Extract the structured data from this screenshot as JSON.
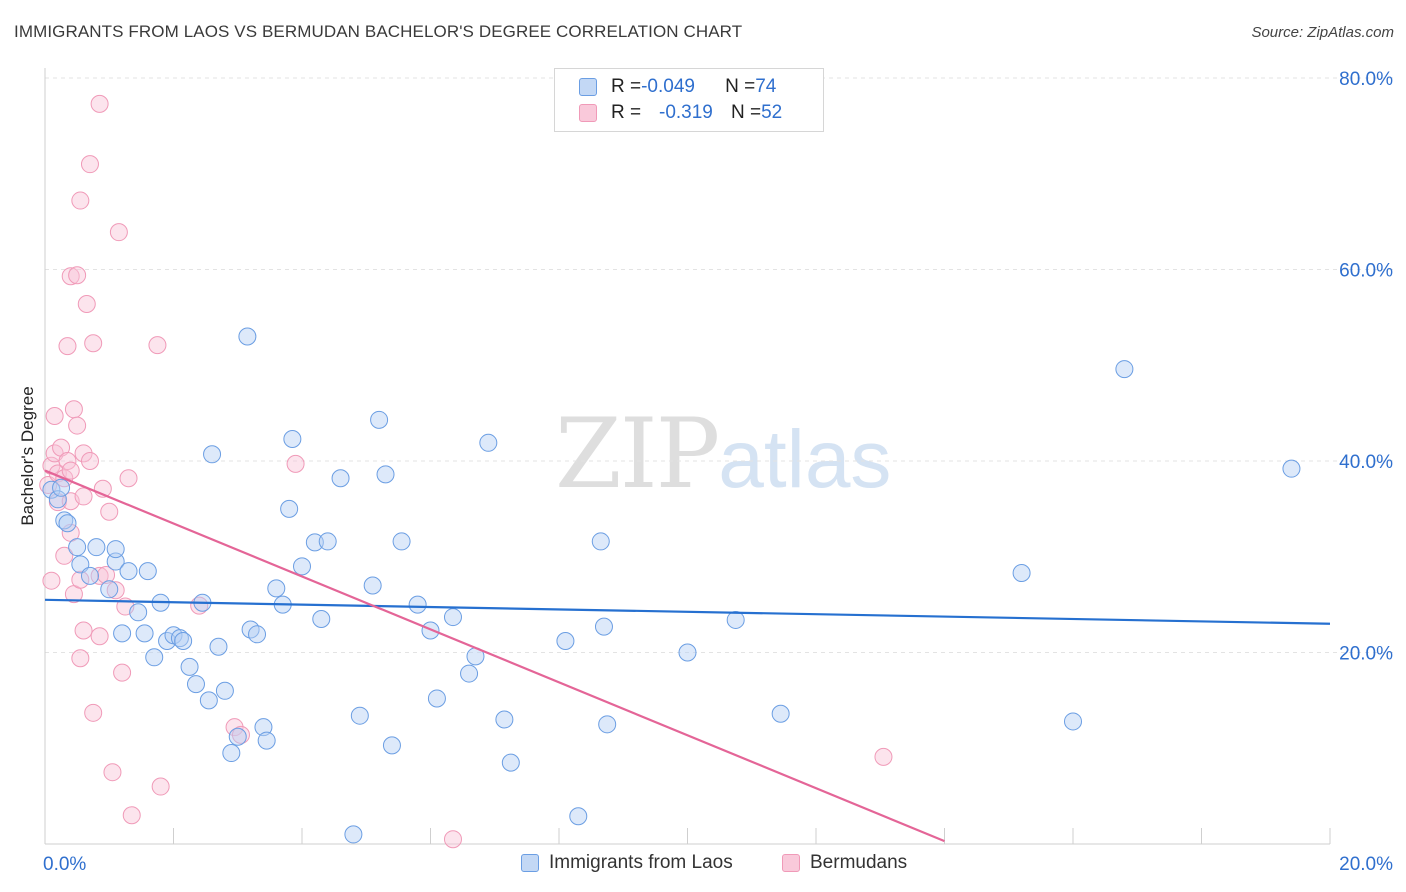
{
  "title": "IMMIGRANTS FROM LAOS VS BERMUDAN BACHELOR'S DEGREE CORRELATION CHART",
  "source": "Source: ZipAtlas.com",
  "watermark": {
    "zip": "ZIP",
    "atlas": "atlas"
  },
  "legend": {
    "rows": [
      {
        "r_label": "R = ",
        "r_value": "-0.049",
        "n_label": "N = ",
        "n_value": "74"
      },
      {
        "r_label": "R = ",
        "r_value": "-0.319",
        "n_label": "N = ",
        "n_value": "52"
      }
    ]
  },
  "bottom_legend": [
    "Immigrants from Laos",
    "Bermudans"
  ],
  "chart_data": {
    "type": "scatter",
    "ylabel": "Bachelor's Degree",
    "xlim": [
      0,
      20
    ],
    "ylim": [
      0,
      80
    ],
    "x_tick_labels": [
      {
        "value": 0,
        "label": "0.0%"
      },
      {
        "value": 20,
        "label": "20.0%"
      }
    ],
    "y_tick_labels": [
      {
        "value": 20,
        "label": "20.0%"
      },
      {
        "value": 40,
        "label": "40.0%"
      },
      {
        "value": 60,
        "label": "60.0%"
      },
      {
        "value": 80,
        "label": "80.0%"
      }
    ],
    "colors": {
      "laos": "#6b9ee3",
      "bermudans": "#f09ab8",
      "laos_line": "#2670d0",
      "bermudans_line": "#e46597",
      "accent_text": "#2f6fce"
    },
    "series": [
      {
        "name": "Immigrants from Laos",
        "points": [
          [
            0.1,
            37.0
          ],
          [
            0.2,
            36.0
          ],
          [
            0.25,
            37.2
          ],
          [
            0.3,
            33.8
          ],
          [
            0.35,
            33.5
          ],
          [
            0.5,
            31.0
          ],
          [
            0.55,
            29.2
          ],
          [
            0.7,
            28.0
          ],
          [
            0.8,
            31.0
          ],
          [
            1.0,
            26.6
          ],
          [
            1.1,
            29.5
          ],
          [
            1.1,
            30.8
          ],
          [
            1.2,
            22.0
          ],
          [
            1.3,
            28.5
          ],
          [
            1.45,
            24.2
          ],
          [
            1.55,
            22.0
          ],
          [
            1.6,
            28.5
          ],
          [
            1.7,
            19.5
          ],
          [
            1.8,
            25.2
          ],
          [
            1.9,
            21.2
          ],
          [
            2.0,
            21.8
          ],
          [
            2.1,
            21.5
          ],
          [
            2.15,
            21.2
          ],
          [
            2.25,
            18.5
          ],
          [
            2.35,
            16.7
          ],
          [
            2.45,
            25.2
          ],
          [
            2.55,
            15.0
          ],
          [
            2.6,
            40.7
          ],
          [
            2.7,
            20.6
          ],
          [
            2.8,
            16.0
          ],
          [
            2.9,
            9.5
          ],
          [
            3.0,
            11.2
          ],
          [
            3.15,
            53.0
          ],
          [
            3.2,
            22.4
          ],
          [
            3.3,
            21.9
          ],
          [
            3.4,
            12.2
          ],
          [
            3.45,
            10.8
          ],
          [
            3.6,
            26.7
          ],
          [
            3.7,
            25.0
          ],
          [
            3.8,
            35.0
          ],
          [
            3.85,
            42.3
          ],
          [
            4.0,
            29.0
          ],
          [
            4.2,
            31.5
          ],
          [
            4.3,
            23.5
          ],
          [
            4.4,
            31.6
          ],
          [
            4.6,
            38.2
          ],
          [
            4.8,
            1.0
          ],
          [
            4.9,
            13.4
          ],
          [
            5.1,
            27.0
          ],
          [
            5.2,
            44.3
          ],
          [
            5.3,
            38.6
          ],
          [
            5.4,
            10.3
          ],
          [
            5.55,
            31.6
          ],
          [
            5.8,
            25.0
          ],
          [
            6.0,
            22.3
          ],
          [
            6.1,
            15.2
          ],
          [
            6.35,
            23.7
          ],
          [
            6.6,
            17.8
          ],
          [
            6.7,
            19.6
          ],
          [
            6.9,
            41.9
          ],
          [
            7.15,
            13.0
          ],
          [
            7.25,
            8.5
          ],
          [
            8.1,
            21.2
          ],
          [
            8.3,
            2.9
          ],
          [
            8.65,
            31.6
          ],
          [
            8.7,
            22.7
          ],
          [
            8.75,
            12.5
          ],
          [
            10.0,
            20.0
          ],
          [
            10.75,
            23.4
          ],
          [
            11.45,
            13.6
          ],
          [
            15.2,
            28.3
          ],
          [
            16.0,
            12.8
          ],
          [
            16.8,
            49.6
          ],
          [
            19.4,
            39.2
          ]
        ]
      },
      {
        "name": "Bermudans",
        "points": [
          [
            0.05,
            37.5
          ],
          [
            0.1,
            39.5
          ],
          [
            0.1,
            27.5
          ],
          [
            0.15,
            44.7
          ],
          [
            0.15,
            40.8
          ],
          [
            0.2,
            38.7
          ],
          [
            0.2,
            35.7
          ],
          [
            0.25,
            41.4
          ],
          [
            0.3,
            30.1
          ],
          [
            0.3,
            38.2
          ],
          [
            0.35,
            40.0
          ],
          [
            0.35,
            52.0
          ],
          [
            0.4,
            59.3
          ],
          [
            0.4,
            39.0
          ],
          [
            0.4,
            32.5
          ],
          [
            0.4,
            35.8
          ],
          [
            0.45,
            26.1
          ],
          [
            0.45,
            45.4
          ],
          [
            0.5,
            59.4
          ],
          [
            0.5,
            43.7
          ],
          [
            0.55,
            19.4
          ],
          [
            0.55,
            67.2
          ],
          [
            0.55,
            27.6
          ],
          [
            0.6,
            36.3
          ],
          [
            0.6,
            40.8
          ],
          [
            0.6,
            22.3
          ],
          [
            0.65,
            56.4
          ],
          [
            0.7,
            40.0
          ],
          [
            0.7,
            71.0
          ],
          [
            0.75,
            13.7
          ],
          [
            0.75,
            52.3
          ],
          [
            0.85,
            21.7
          ],
          [
            0.85,
            77.3
          ],
          [
            0.85,
            28.0
          ],
          [
            0.9,
            37.1
          ],
          [
            0.95,
            28.1
          ],
          [
            1.0,
            34.7
          ],
          [
            1.05,
            7.5
          ],
          [
            1.1,
            26.5
          ],
          [
            1.15,
            63.9
          ],
          [
            1.2,
            17.9
          ],
          [
            1.25,
            24.8
          ],
          [
            1.3,
            38.2
          ],
          [
            1.35,
            3.0
          ],
          [
            1.75,
            52.1
          ],
          [
            1.8,
            6.0
          ],
          [
            2.4,
            24.9
          ],
          [
            2.95,
            12.2
          ],
          [
            3.05,
            11.4
          ],
          [
            3.9,
            39.7
          ],
          [
            6.35,
            0.5
          ],
          [
            13.05,
            9.1
          ]
        ]
      }
    ],
    "trend_lines": [
      {
        "series": "Immigrants from Laos",
        "x": [
          0,
          20
        ],
        "y": [
          25.5,
          23.0
        ]
      },
      {
        "series": "Bermudans",
        "x": [
          0,
          14
        ],
        "y": [
          39.0,
          0.3
        ]
      }
    ]
  }
}
